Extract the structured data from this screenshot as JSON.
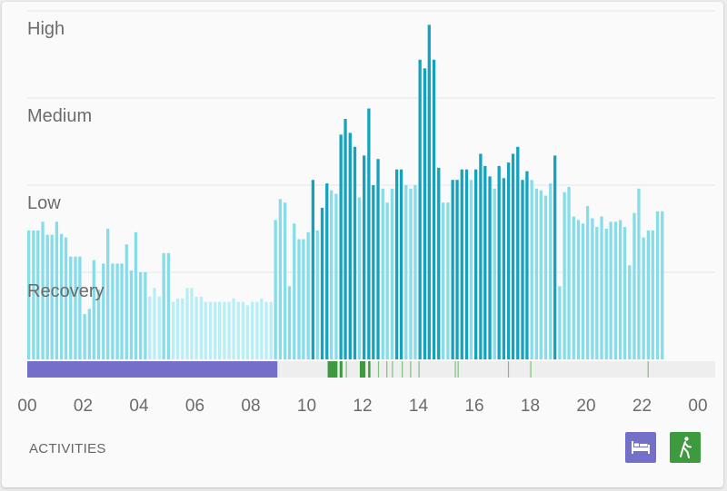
{
  "chart_data": {
    "type": "bar",
    "y_levels": [
      "High",
      "Medium",
      "Low",
      "Recovery"
    ],
    "x_ticks": [
      "00",
      "02",
      "04",
      "06",
      "08",
      "10",
      "12",
      "14",
      "16",
      "18",
      "20",
      "22",
      "00"
    ],
    "x_range_hours": [
      0,
      24
    ],
    "grid": true,
    "level_scale": "0 = baseline, 1 = Recovery, 2 = Low, 3 = Medium, 4 = High",
    "bars": [
      {
        "h": 0.0,
        "v": 1.48,
        "c": "#86dde9"
      },
      {
        "h": 0.17,
        "v": 1.48,
        "c": "#86dde9"
      },
      {
        "h": 0.33,
        "v": 1.48,
        "c": "#86dde9"
      },
      {
        "h": 0.5,
        "v": 1.58,
        "c": "#86dde9"
      },
      {
        "h": 0.67,
        "v": 1.43,
        "c": "#86dde9"
      },
      {
        "h": 0.83,
        "v": 1.43,
        "c": "#86dde9"
      },
      {
        "h": 1.0,
        "v": 1.58,
        "c": "#86dde9"
      },
      {
        "h": 1.17,
        "v": 1.44,
        "c": "#86dde9"
      },
      {
        "h": 1.33,
        "v": 1.4,
        "c": "#86dde9"
      },
      {
        "h": 1.5,
        "v": 1.18,
        "c": "#86dde9"
      },
      {
        "h": 1.67,
        "v": 1.18,
        "c": "#86dde9"
      },
      {
        "h": 1.83,
        "v": 1.18,
        "c": "#86dde9"
      },
      {
        "h": 2.0,
        "v": 0.52,
        "c": "#86dde9"
      },
      {
        "h": 2.17,
        "v": 0.58,
        "c": "#86dde9"
      },
      {
        "h": 2.33,
        "v": 1.14,
        "c": "#86dde9"
      },
      {
        "h": 2.5,
        "v": 0.8,
        "c": "#86dde9"
      },
      {
        "h": 2.67,
        "v": 1.1,
        "c": "#86dde9"
      },
      {
        "h": 2.83,
        "v": 1.5,
        "c": "#86dde9"
      },
      {
        "h": 3.0,
        "v": 1.1,
        "c": "#86dde9"
      },
      {
        "h": 3.17,
        "v": 1.1,
        "c": "#86dde9"
      },
      {
        "h": 3.33,
        "v": 1.1,
        "c": "#86dde9"
      },
      {
        "h": 3.5,
        "v": 1.32,
        "c": "#86dde9"
      },
      {
        "h": 3.67,
        "v": 1.02,
        "c": "#86dde9"
      },
      {
        "h": 3.83,
        "v": 1.46,
        "c": "#86dde9"
      },
      {
        "h": 4.0,
        "v": 1.0,
        "c": "#86dde9"
      },
      {
        "h": 4.17,
        "v": 1.0,
        "c": "#86dde9"
      },
      {
        "h": 4.33,
        "v": 0.72,
        "c": "#b8eef5"
      },
      {
        "h": 4.5,
        "v": 0.82,
        "c": "#b8eef5"
      },
      {
        "h": 4.67,
        "v": 0.72,
        "c": "#b8eef5"
      },
      {
        "h": 4.83,
        "v": 1.22,
        "c": "#86dde9"
      },
      {
        "h": 5.0,
        "v": 1.22,
        "c": "#86dde9"
      },
      {
        "h": 5.17,
        "v": 0.66,
        "c": "#b8eef5"
      },
      {
        "h": 5.33,
        "v": 0.7,
        "c": "#b8eef5"
      },
      {
        "h": 5.5,
        "v": 0.7,
        "c": "#b8eef5"
      },
      {
        "h": 5.67,
        "v": 0.82,
        "c": "#b8eef5"
      },
      {
        "h": 5.83,
        "v": 0.82,
        "c": "#b8eef5"
      },
      {
        "h": 6.0,
        "v": 0.72,
        "c": "#b8eef5"
      },
      {
        "h": 6.17,
        "v": 0.72,
        "c": "#b8eef5"
      },
      {
        "h": 6.33,
        "v": 0.66,
        "c": "#b8eef5"
      },
      {
        "h": 6.5,
        "v": 0.66,
        "c": "#b8eef5"
      },
      {
        "h": 6.67,
        "v": 0.66,
        "c": "#b8eef5"
      },
      {
        "h": 6.83,
        "v": 0.66,
        "c": "#b8eef5"
      },
      {
        "h": 7.0,
        "v": 0.66,
        "c": "#b8eef5"
      },
      {
        "h": 7.17,
        "v": 0.66,
        "c": "#b8eef5"
      },
      {
        "h": 7.33,
        "v": 0.7,
        "c": "#b8eef5"
      },
      {
        "h": 7.5,
        "v": 0.66,
        "c": "#b8eef5"
      },
      {
        "h": 7.67,
        "v": 0.66,
        "c": "#b8eef5"
      },
      {
        "h": 7.83,
        "v": 0.62,
        "c": "#b8eef5"
      },
      {
        "h": 8.0,
        "v": 0.66,
        "c": "#b8eef5"
      },
      {
        "h": 8.17,
        "v": 0.66,
        "c": "#b8eef5"
      },
      {
        "h": 8.33,
        "v": 0.7,
        "c": "#b8eef5"
      },
      {
        "h": 8.5,
        "v": 0.66,
        "c": "#b8eef5"
      },
      {
        "h": 8.67,
        "v": 0.66,
        "c": "#b8eef5"
      },
      {
        "h": 8.83,
        "v": 1.6,
        "c": "#86dde9"
      },
      {
        "h": 9.0,
        "v": 1.84,
        "c": "#86dde9"
      },
      {
        "h": 9.17,
        "v": 1.8,
        "c": "#86dde9"
      },
      {
        "h": 9.33,
        "v": 0.84,
        "c": "#86dde9"
      },
      {
        "h": 9.5,
        "v": 1.56,
        "c": "#86dde9"
      },
      {
        "h": 9.67,
        "v": 1.38,
        "c": "#86dde9"
      },
      {
        "h": 9.83,
        "v": 1.38,
        "c": "#86dde9"
      },
      {
        "h": 10.0,
        "v": 1.46,
        "c": "#86dde9"
      },
      {
        "h": 10.17,
        "v": 2.06,
        "c": "#13a3be"
      },
      {
        "h": 10.33,
        "v": 1.48,
        "c": "#86dde9"
      },
      {
        "h": 10.5,
        "v": 1.74,
        "c": "#13a3be"
      },
      {
        "h": 10.67,
        "v": 2.02,
        "c": "#13a3be"
      },
      {
        "h": 10.83,
        "v": 1.94,
        "c": "#86dde9"
      },
      {
        "h": 11.0,
        "v": 1.9,
        "c": "#86dde9"
      },
      {
        "h": 11.17,
        "v": 2.58,
        "c": "#13a3be"
      },
      {
        "h": 11.33,
        "v": 2.76,
        "c": "#13a3be"
      },
      {
        "h": 11.5,
        "v": 2.6,
        "c": "#13a3be"
      },
      {
        "h": 11.67,
        "v": 2.44,
        "c": "#13a3be"
      },
      {
        "h": 11.83,
        "v": 1.86,
        "c": "#86dde9"
      },
      {
        "h": 12.0,
        "v": 2.34,
        "c": "#13a3be"
      },
      {
        "h": 12.17,
        "v": 2.88,
        "c": "#13a3be"
      },
      {
        "h": 12.33,
        "v": 2.0,
        "c": "#13a3be"
      },
      {
        "h": 12.5,
        "v": 2.3,
        "c": "#13a3be"
      },
      {
        "h": 12.67,
        "v": 1.96,
        "c": "#86dde9"
      },
      {
        "h": 12.83,
        "v": 1.8,
        "c": "#86dde9"
      },
      {
        "h": 13.0,
        "v": 1.96,
        "c": "#86dde9"
      },
      {
        "h": 13.17,
        "v": 2.18,
        "c": "#13a3be"
      },
      {
        "h": 13.33,
        "v": 2.18,
        "c": "#13a3be"
      },
      {
        "h": 13.5,
        "v": 2.0,
        "c": "#86dde9"
      },
      {
        "h": 13.67,
        "v": 1.96,
        "c": "#86dde9"
      },
      {
        "h": 13.83,
        "v": 2.0,
        "c": "#86dde9"
      },
      {
        "h": 14.0,
        "v": 3.44,
        "c": "#13a3be"
      },
      {
        "h": 14.17,
        "v": 3.34,
        "c": "#13a3be"
      },
      {
        "h": 14.33,
        "v": 3.84,
        "c": "#13a3be"
      },
      {
        "h": 14.5,
        "v": 3.44,
        "c": "#13a3be"
      },
      {
        "h": 14.67,
        "v": 2.2,
        "c": "#13a3be"
      },
      {
        "h": 14.83,
        "v": 1.8,
        "c": "#86dde9"
      },
      {
        "h": 15.0,
        "v": 1.8,
        "c": "#86dde9"
      },
      {
        "h": 15.17,
        "v": 2.06,
        "c": "#13a3be"
      },
      {
        "h": 15.33,
        "v": 2.06,
        "c": "#13a3be"
      },
      {
        "h": 15.5,
        "v": 2.18,
        "c": "#13a3be"
      },
      {
        "h": 15.67,
        "v": 2.18,
        "c": "#13a3be"
      },
      {
        "h": 15.83,
        "v": 2.06,
        "c": "#86dde9"
      },
      {
        "h": 16.0,
        "v": 2.18,
        "c": "#13a3be"
      },
      {
        "h": 16.17,
        "v": 2.36,
        "c": "#13a3be"
      },
      {
        "h": 16.33,
        "v": 2.22,
        "c": "#13a3be"
      },
      {
        "h": 16.5,
        "v": 2.1,
        "c": "#13a3be"
      },
      {
        "h": 16.67,
        "v": 1.96,
        "c": "#86dde9"
      },
      {
        "h": 16.83,
        "v": 2.22,
        "c": "#13a3be"
      },
      {
        "h": 17.0,
        "v": 2.08,
        "c": "#13a3be"
      },
      {
        "h": 17.17,
        "v": 2.26,
        "c": "#13a3be"
      },
      {
        "h": 17.33,
        "v": 2.36,
        "c": "#13a3be"
      },
      {
        "h": 17.5,
        "v": 2.44,
        "c": "#13a3be"
      },
      {
        "h": 17.67,
        "v": 2.06,
        "c": "#13a3be"
      },
      {
        "h": 17.83,
        "v": 2.16,
        "c": "#13a3be"
      },
      {
        "h": 18.0,
        "v": 2.06,
        "c": "#86dde9"
      },
      {
        "h": 18.17,
        "v": 1.96,
        "c": "#86dde9"
      },
      {
        "h": 18.33,
        "v": 1.94,
        "c": "#86dde9"
      },
      {
        "h": 18.5,
        "v": 1.88,
        "c": "#86dde9"
      },
      {
        "h": 18.67,
        "v": 2.02,
        "c": "#86dde9"
      },
      {
        "h": 18.83,
        "v": 2.34,
        "c": "#13a3be"
      },
      {
        "h": 19.0,
        "v": 0.84,
        "c": "#86dde9"
      },
      {
        "h": 19.17,
        "v": 1.92,
        "c": "#86dde9"
      },
      {
        "h": 19.33,
        "v": 1.98,
        "c": "#86dde9"
      },
      {
        "h": 19.5,
        "v": 1.64,
        "c": "#86dde9"
      },
      {
        "h": 19.67,
        "v": 1.6,
        "c": "#86dde9"
      },
      {
        "h": 19.83,
        "v": 1.56,
        "c": "#86dde9"
      },
      {
        "h": 20.0,
        "v": 1.76,
        "c": "#86dde9"
      },
      {
        "h": 20.17,
        "v": 1.62,
        "c": "#86dde9"
      },
      {
        "h": 20.33,
        "v": 1.52,
        "c": "#86dde9"
      },
      {
        "h": 20.5,
        "v": 1.64,
        "c": "#86dde9"
      },
      {
        "h": 20.67,
        "v": 1.5,
        "c": "#86dde9"
      },
      {
        "h": 20.83,
        "v": 1.58,
        "c": "#86dde9"
      },
      {
        "h": 21.0,
        "v": 1.58,
        "c": "#86dde9"
      },
      {
        "h": 21.17,
        "v": 1.6,
        "c": "#86dde9"
      },
      {
        "h": 21.33,
        "v": 1.52,
        "c": "#86dde9"
      },
      {
        "h": 21.5,
        "v": 1.08,
        "c": "#86dde9"
      },
      {
        "h": 21.67,
        "v": 1.68,
        "c": "#86dde9"
      },
      {
        "h": 21.83,
        "v": 1.96,
        "c": "#86dde9"
      },
      {
        "h": 22.0,
        "v": 1.4,
        "c": "#86dde9"
      },
      {
        "h": 22.17,
        "v": 1.48,
        "c": "#86dde9"
      },
      {
        "h": 22.33,
        "v": 1.48,
        "c": "#86dde9"
      },
      {
        "h": 22.5,
        "v": 1.7,
        "c": "#86dde9"
      },
      {
        "h": 22.67,
        "v": 1.7,
        "c": "#86dde9"
      }
    ],
    "activities": {
      "sleep": {
        "start_hour": 0,
        "end_hour": 8.95,
        "color": "#7470c9"
      },
      "walk_blocks": [
        {
          "start_hour": 10.75,
          "end_hour": 11.1
        },
        {
          "start_hour": 11.18,
          "end_hour": 11.28
        },
        {
          "start_hour": 11.9,
          "end_hour": 12.1
        },
        {
          "start_hour": 12.2,
          "end_hour": 12.28
        }
      ],
      "walk_marks": [
        11.4,
        12.55,
        12.85,
        13.05,
        13.4,
        13.7,
        14.0,
        15.3,
        15.4,
        17.2,
        18.0,
        22.2
      ],
      "walk_color": "#3e9a3e"
    }
  },
  "colors": {
    "sleep": "#7470c9",
    "walk": "#3e9a3e",
    "grid": "#e6e6e6",
    "track": "#eeeeee"
  },
  "footer": {
    "label": "ACTIVITIES",
    "legend": [
      {
        "id": "sleep",
        "icon": "bed-icon",
        "color": "#7470c9"
      },
      {
        "id": "walk",
        "icon": "walking-person-icon",
        "color": "#3e9a3e"
      }
    ]
  }
}
